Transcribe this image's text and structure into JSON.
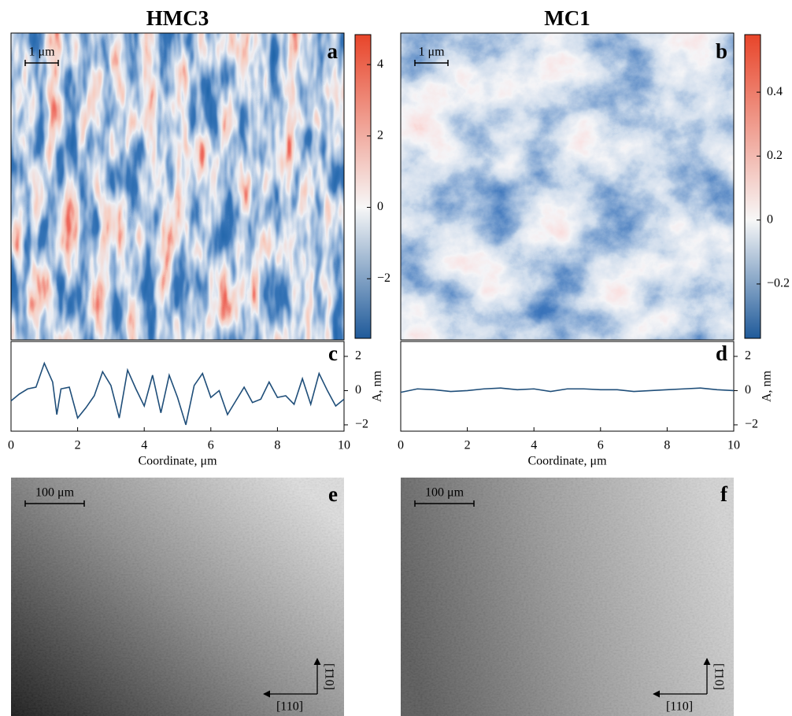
{
  "chart_data": [
    {
      "type": "heatmap",
      "title": "HMC3",
      "label": "a",
      "scalebar": "1 μm",
      "clim": [
        -3.67,
        4.84
      ],
      "cticks": [
        4,
        2,
        0,
        {
          "value": -2,
          "label": "−2"
        }
      ]
    },
    {
      "type": "heatmap",
      "title": "MC1",
      "label": "b",
      "scalebar": "1 μm",
      "clim": [
        -0.37,
        0.58
      ],
      "cticks": [
        0.4,
        0.2,
        0,
        {
          "value": -0.2,
          "label": "−0.2"
        }
      ]
    },
    {
      "type": "line",
      "label": "c",
      "xlabel": "Coordinate, μm",
      "ylabel": "A, nm",
      "color": "#1f4e79",
      "x": [
        0,
        0.25,
        0.5,
        0.75,
        1,
        1.25,
        1.375,
        1.5,
        1.75,
        2,
        2.25,
        2.5,
        2.75,
        3,
        3.25,
        3.5,
        3.75,
        4,
        4.25,
        4.5,
        4.75,
        5,
        5.25,
        5.5,
        5.75,
        6,
        6.25,
        6.5,
        6.75,
        7,
        7.25,
        7.5,
        7.75,
        8,
        8.25,
        8.5,
        8.75,
        9,
        9.25,
        9.5,
        9.75,
        10
      ],
      "values": [
        -0.6,
        -0.2,
        0.1,
        0.2,
        1.6,
        0.5,
        -1.4,
        0.1,
        0.2,
        -1.6,
        -1.0,
        -0.3,
        1.1,
        0.3,
        -1.6,
        1.2,
        0.1,
        -0.9,
        0.9,
        -1.3,
        0.9,
        -0.4,
        -2.0,
        0.3,
        1.0,
        -0.4,
        0.0,
        -1.4,
        -0.6,
        0.2,
        -0.7,
        -0.5,
        0.5,
        -0.4,
        -0.3,
        -0.8,
        0.7,
        -0.8,
        1.0,
        0.0,
        -0.9,
        -0.5
      ],
      "xlim": [
        0,
        10
      ],
      "xticks": [
        0,
        2,
        4,
        6,
        8,
        10
      ],
      "ylim": [
        -2.37,
        2.87
      ],
      "yticks": [
        2,
        0,
        {
          "value": -2,
          "label": "−2"
        }
      ]
    },
    {
      "type": "line",
      "label": "d",
      "xlabel": "Coordinate, μm",
      "ylabel": "A, nm",
      "color": "#1f4e79",
      "x": [
        0,
        0.5,
        1,
        1.5,
        2,
        2.5,
        3,
        3.5,
        4,
        4.5,
        5,
        5.5,
        6,
        6.5,
        7,
        7.5,
        8,
        8.5,
        9,
        9.5,
        10
      ],
      "values": [
        -0.1,
        0.1,
        0.05,
        -0.05,
        0.0,
        0.1,
        0.15,
        0.05,
        0.1,
        -0.05,
        0.1,
        0.1,
        0.05,
        0.05,
        -0.05,
        0.0,
        0.05,
        0.1,
        0.15,
        0.05,
        0.0
      ],
      "xlim": [
        0,
        10
      ],
      "xticks": [
        0,
        2,
        4,
        6,
        8,
        10
      ],
      "ylim": [
        -2.37,
        2.87
      ],
      "yticks": [
        2,
        0,
        {
          "value": -2,
          "label": "−2"
        }
      ]
    },
    {
      "type": "image",
      "label": "e",
      "scalebar": "100 μm",
      "directions": [
        "[110]",
        "[1̄10]"
      ]
    },
    {
      "type": "image",
      "label": "f",
      "scalebar": "100 μm",
      "directions": [
        "[110]",
        "[1̄10]"
      ]
    }
  ]
}
